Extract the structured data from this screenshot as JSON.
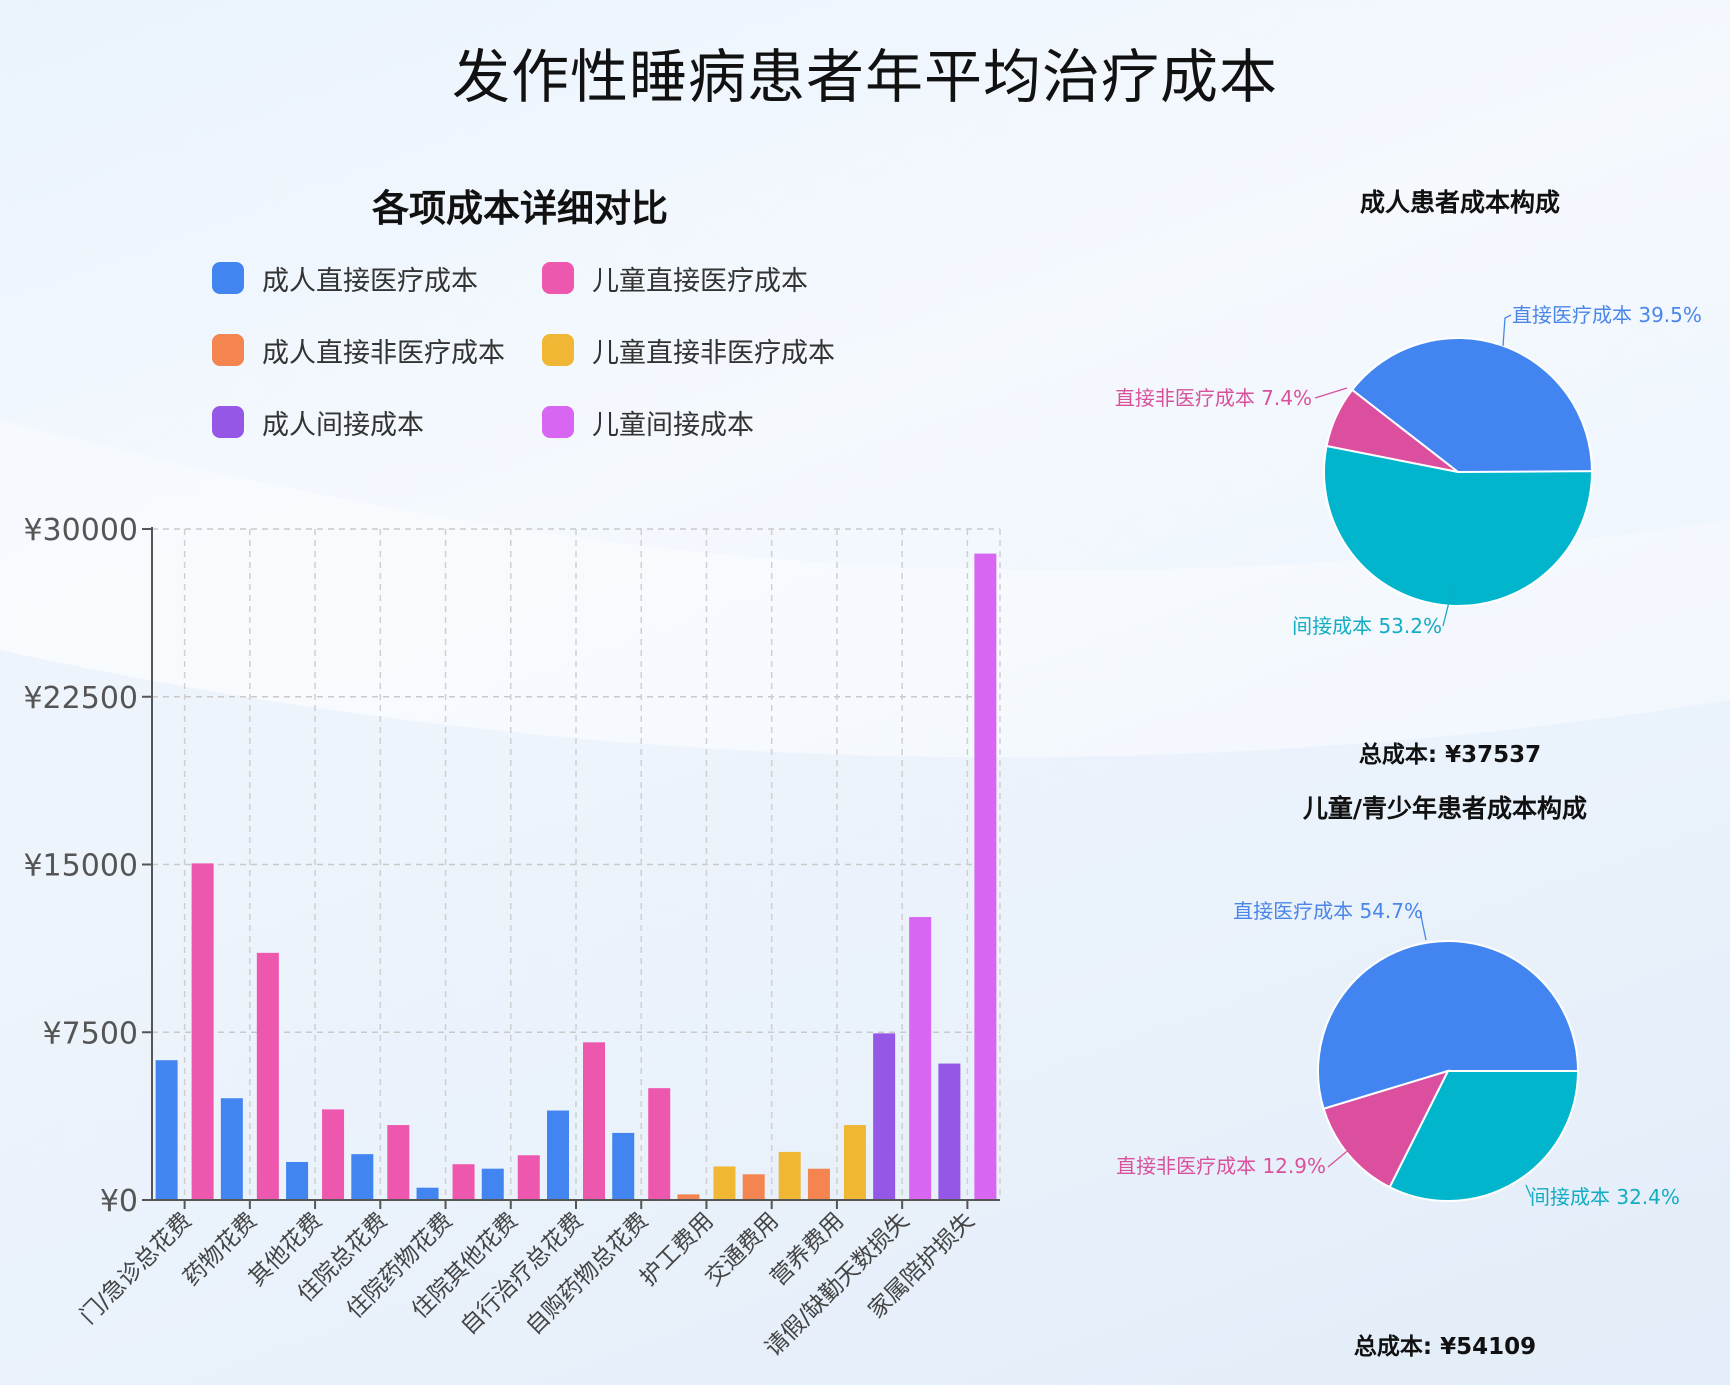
{
  "title": "发作性睡病患者年平均治疗成本",
  "bar_title": "各项成本详细对比",
  "colors": {
    "adult_direct_medical": "#4285f0",
    "child_direct_medical": "#ee57ae",
    "adult_direct_nonmedical": "#f58550",
    "child_direct_nonmedical": "#efb733",
    "adult_indirect": "#9457e6",
    "child_indirect": "#d866f2",
    "pie_direct_medical": "#4285f0",
    "pie_direct_nonmedical": "#dc4f9e",
    "pie_indirect": "#00b5cc"
  },
  "legend": [
    {
      "label": "成人直接医疗成本",
      "color": "#4285f0"
    },
    {
      "label": "儿童直接医疗成本",
      "color": "#ee57ae"
    },
    {
      "label": "成人直接非医疗成本",
      "color": "#f58550"
    },
    {
      "label": "儿童直接非医疗成本",
      "color": "#efb733"
    },
    {
      "label": "成人间接成本",
      "color": "#9457e6"
    },
    {
      "label": "儿童间接成本",
      "color": "#d866f2"
    }
  ],
  "chart_data": [
    {
      "type": "bar",
      "title": "各项成本详细对比",
      "categories": [
        "门/急诊总花费",
        "药物花费",
        "其他花费",
        "住院总花费",
        "住院药物花费",
        "住院其他花费",
        "自行治疗总花费",
        "自购药物总花费",
        "护工费用",
        "交通费用",
        "营养费用",
        "请假/缺勤天数损失",
        "家属陪护损失"
      ],
      "ylim": [
        0,
        30000
      ],
      "yticks": [
        0,
        7500,
        15000,
        22500,
        30000
      ],
      "ytick_labels": [
        "¥0",
        "¥7500",
        "¥15000",
        "¥22500",
        "¥30000"
      ],
      "grid": true,
      "legend_position": "top",
      "groups": [
        {
          "adult": 6250,
          "child": 15050,
          "kind": "medical"
        },
        {
          "adult": 4550,
          "child": 11050,
          "kind": "medical"
        },
        {
          "adult": 1700,
          "child": 4050,
          "kind": "medical"
        },
        {
          "adult": 2050,
          "child": 3350,
          "kind": "medical"
        },
        {
          "adult": 550,
          "child": 1600,
          "kind": "medical"
        },
        {
          "adult": 1400,
          "child": 2000,
          "kind": "medical"
        },
        {
          "adult": 4000,
          "child": 7050,
          "kind": "medical"
        },
        {
          "adult": 3000,
          "child": 5000,
          "kind": "medical"
        },
        {
          "adult": 250,
          "child": 1500,
          "kind": "nonmedical"
        },
        {
          "adult": 1150,
          "child": 2150,
          "kind": "nonmedical"
        },
        {
          "adult": 1400,
          "child": 3350,
          "kind": "nonmedical"
        },
        {
          "adult": 7450,
          "child": 12650,
          "kind": "indirect"
        },
        {
          "adult": 6100,
          "child": 28900,
          "kind": "indirect"
        }
      ]
    },
    {
      "type": "pie",
      "title": "成人患者成本构成",
      "total_label": "总成本: ¥37537",
      "slices": [
        {
          "label": "直接医疗成本",
          "pct": 39.5,
          "color": "#4285f0",
          "text": "直接医疗成本 39.5%",
          "label_color": "#4a86e8"
        },
        {
          "label": "直接非医疗成本",
          "pct": 7.4,
          "color": "#dc4f9e",
          "text": "直接非医疗成本 7.4%",
          "label_color": "#d9519c"
        },
        {
          "label": "间接成本",
          "pct": 53.2,
          "color": "#00b5cc",
          "text": "间接成本 53.2%",
          "label_color": "#12adc2"
        }
      ]
    },
    {
      "type": "pie",
      "title": "儿童/青少年患者成本构成",
      "total_label": "总成本: ¥54109",
      "slices": [
        {
          "label": "直接医疗成本",
          "pct": 54.7,
          "color": "#4285f0",
          "text": "直接医疗成本 54.7%",
          "label_color": "#4a86e8"
        },
        {
          "label": "直接非医疗成本",
          "pct": 12.9,
          "color": "#dc4f9e",
          "text": "直接非医疗成本 12.9%",
          "label_color": "#d9519c"
        },
        {
          "label": "间接成本",
          "pct": 32.4,
          "color": "#00b5cc",
          "text": "间接成本 32.4%",
          "label_color": "#12adc2"
        }
      ]
    }
  ]
}
